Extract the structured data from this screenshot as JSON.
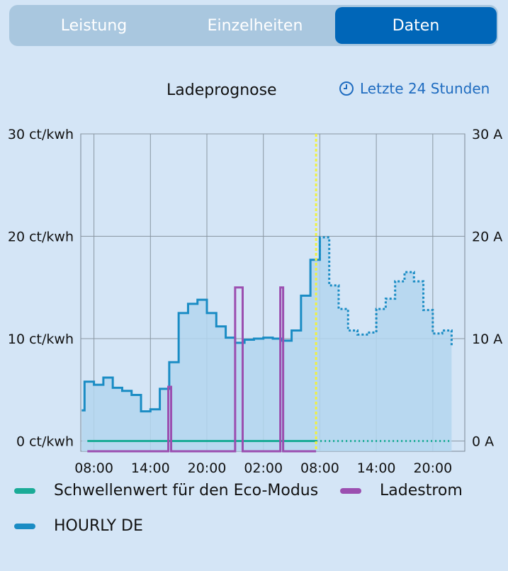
{
  "tabs": [
    {
      "label": "Leistung",
      "active": false
    },
    {
      "label": "Einzelheiten",
      "active": false
    },
    {
      "label": "Daten",
      "active": true
    }
  ],
  "header": {
    "title": "Ladeprognose",
    "range_label": "Letzte 24 Stunden",
    "range_icon": "clock-icon"
  },
  "colors": {
    "accent": "#0066b8",
    "price_line": "#1a8cc4",
    "price_fill": "#b3d6ee",
    "eco_line": "#1aab97",
    "current_line": "#9b4fb0",
    "now_marker": "#f0f040"
  },
  "chart_data": {
    "type": "line",
    "title": "Ladeprognose",
    "x_ticks": [
      "08:00",
      "14:00",
      "20:00",
      "02:00",
      "08:00",
      "14:00",
      "20:00"
    ],
    "x_tick_hours": [
      8,
      14,
      20,
      26,
      32,
      38,
      44
    ],
    "x_range": [
      6.6,
      47.4
    ],
    "y_left_ticks": [
      "30 ct/kwh",
      "20 ct/kwh",
      "10 ct/kwh",
      "0 ct/kwh"
    ],
    "y_left_values": [
      30,
      20,
      10,
      0
    ],
    "y_right_ticks": [
      "30 A",
      "20 A",
      "10 A",
      "0 A"
    ],
    "y_right_values": [
      30,
      20,
      10,
      0
    ],
    "ylim": [
      -1,
      30
    ],
    "now_hour": 31.6,
    "series": [
      {
        "name": "HOURLY DE",
        "step": true,
        "x": [
          6.7,
          7,
          8,
          9,
          10,
          11,
          12,
          13,
          14,
          15,
          16,
          17,
          18,
          19,
          20,
          21,
          22,
          23,
          24,
          25,
          26,
          27,
          28,
          29,
          30,
          31,
          32,
          33,
          34,
          35,
          36,
          37,
          38,
          39,
          40,
          41,
          42,
          43,
          44,
          45,
          46
        ],
        "y": [
          3,
          5.8,
          5.5,
          6.2,
          5.2,
          4.9,
          4.5,
          2.9,
          3.1,
          5.1,
          7.7,
          12.5,
          13.4,
          13.8,
          12.5,
          11.2,
          10.1,
          9.6,
          9.9,
          10,
          10.1,
          10,
          9.8,
          10.8,
          14.2,
          17.7,
          19.9,
          15.2,
          12.9,
          10.8,
          10.4,
          10.6,
          12.9,
          13.9,
          15.6,
          16.5,
          15.6,
          12.8,
          10.5,
          10.8,
          9.3
        ],
        "forecast_from_hour": 32
      },
      {
        "name": "Ladestrom",
        "step": false,
        "x": [
          7.3,
          15.9,
          15.9,
          16.2,
          16.2,
          23.0,
          23.0,
          23.8,
          23.8,
          27.8,
          27.8,
          28.1,
          28.1,
          31.6
        ],
        "y": [
          -1,
          -1,
          5.3,
          5.3,
          -1,
          -1,
          15,
          15,
          -1,
          -1,
          15,
          15,
          -1,
          -1
        ]
      },
      {
        "name": "Schwellenwert für den Eco-Modus",
        "step": false,
        "x": [
          7.3,
          46
        ],
        "y": [
          0,
          0
        ],
        "forecast_from_hour": 31.6
      }
    ]
  },
  "legend": {
    "eco": "Schwellenwert für den Eco-Modus",
    "current": "Ladestrom",
    "hourly": "HOURLY DE"
  }
}
